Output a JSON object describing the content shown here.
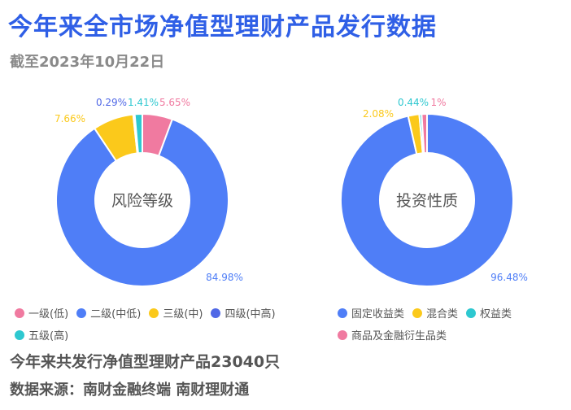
{
  "title": "今年来全市场净值型理财产品发行数据",
  "subtitle": "截至2023年10月22日",
  "summary": "今年来共发行净值型理财产品23040只",
  "source": "数据来源：南财金融终端 南财理财通",
  "chart_data": [
    {
      "type": "pie",
      "center_label": "风险等级",
      "categories": [
        "一级(低)",
        "二级(中低)",
        "三级(中)",
        "四级(中高)",
        "五级(高)"
      ],
      "values": [
        5.65,
        84.98,
        7.66,
        0.29,
        1.41
      ],
      "value_labels": [
        "5.65%",
        "84.98%",
        "7.66%",
        "0.29%",
        "1.41%"
      ],
      "colors": [
        "#f07aa0",
        "#4f7ef7",
        "#fbc91b",
        "#5068e6",
        "#2ec8d0"
      ]
    },
    {
      "type": "pie",
      "center_label": "投资性质",
      "categories": [
        "固定收益类",
        "混合类",
        "权益类",
        "商品及金融衍生品类"
      ],
      "values": [
        96.48,
        2.08,
        0.44,
        1
      ],
      "value_labels": [
        "96.48%",
        "2.08%",
        "0.44%",
        "1%"
      ],
      "colors": [
        "#4f7ef7",
        "#fbc91b",
        "#2ec8d0",
        "#f07aa0"
      ]
    }
  ]
}
